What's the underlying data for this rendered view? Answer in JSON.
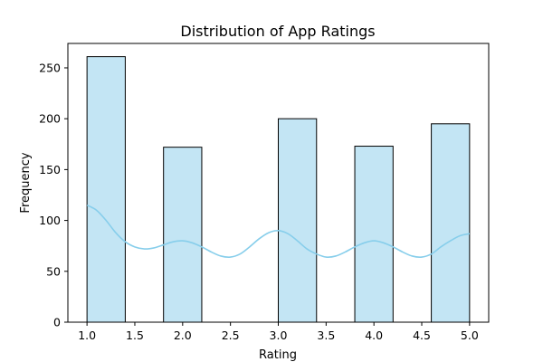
{
  "chart_data": {
    "type": "bar",
    "title": "Distribution of App Ratings",
    "xlabel": "Rating",
    "ylabel": "Frequency",
    "bins": [
      {
        "x0": 1.0,
        "x1": 1.4,
        "count": 261
      },
      {
        "x0": 1.8,
        "x1": 2.2,
        "count": 172
      },
      {
        "x0": 3.0,
        "x1": 3.4,
        "count": 200
      },
      {
        "x0": 3.8,
        "x1": 4.2,
        "count": 173
      },
      {
        "x0": 4.6,
        "x1": 5.0,
        "count": 195
      }
    ],
    "kde": {
      "x": [
        1.0,
        1.1,
        1.2,
        1.3,
        1.4,
        1.5,
        1.6,
        1.7,
        1.8,
        1.9,
        2.0,
        2.1,
        2.2,
        2.3,
        2.4,
        2.5,
        2.6,
        2.7,
        2.8,
        2.9,
        3.0,
        3.1,
        3.2,
        3.3,
        3.4,
        3.5,
        3.6,
        3.7,
        3.8,
        3.9,
        4.0,
        4.1,
        4.2,
        4.3,
        4.4,
        4.5,
        4.6,
        4.7,
        4.8,
        4.9,
        5.0
      ],
      "y": [
        115,
        110,
        100,
        88,
        79,
        74,
        72,
        73,
        76,
        79,
        80,
        78,
        74,
        69,
        65,
        64,
        67,
        74,
        82,
        88,
        90,
        87,
        80,
        72,
        67,
        64,
        65,
        69,
        74,
        78,
        80,
        78,
        74,
        69,
        65,
        64,
        67,
        74,
        80,
        85,
        87
      ]
    },
    "xlim": [
      0.8,
      5.2
    ],
    "ylim": [
      0,
      274
    ],
    "xticks": [
      1.0,
      1.5,
      2.0,
      2.5,
      3.0,
      3.5,
      4.0,
      4.5,
      5.0
    ],
    "xtick_labels": [
      "1.0",
      "1.5",
      "2.0",
      "2.5",
      "3.0",
      "3.5",
      "4.0",
      "4.5",
      "5.0"
    ],
    "yticks": [
      0,
      50,
      100,
      150,
      200,
      250
    ],
    "ytick_labels": [
      "0",
      "50",
      "100",
      "150",
      "200",
      "250"
    ],
    "grid": false,
    "bar_fill": "#c3e5f4",
    "bar_edge": "#000000",
    "kde_color": "#87ceeb"
  }
}
